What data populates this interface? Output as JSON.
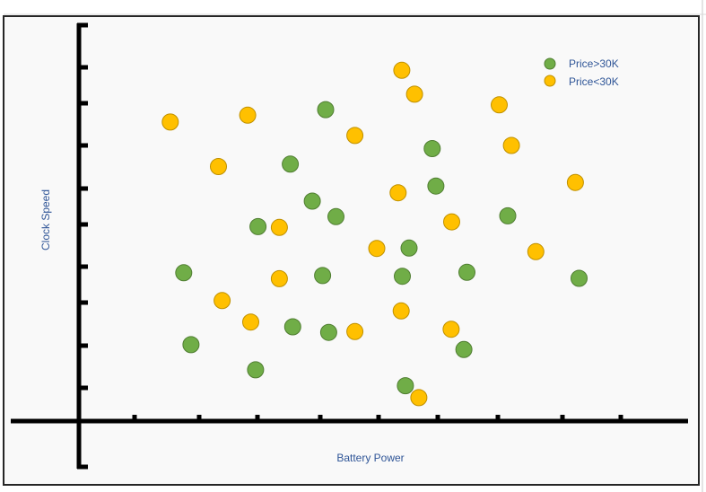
{
  "chart_data": {
    "type": "scatter",
    "xlabel": "Battery Power",
    "ylabel": "Clock Speed",
    "xlim": [
      0,
      100
    ],
    "ylim": [
      0,
      100
    ],
    "grid": false,
    "legend_position": "top-right",
    "series": [
      {
        "name": "Price>30K",
        "color": "#70ad47",
        "points": [
          {
            "x": 40.5,
            "y": 78.3
          },
          {
            "x": 34.7,
            "y": 64.6
          },
          {
            "x": 58.0,
            "y": 68.5
          },
          {
            "x": 38.3,
            "y": 55.3
          },
          {
            "x": 58.6,
            "y": 59.1
          },
          {
            "x": 29.4,
            "y": 48.9
          },
          {
            "x": 42.2,
            "y": 51.4
          },
          {
            "x": 70.4,
            "y": 51.6
          },
          {
            "x": 54.2,
            "y": 43.5
          },
          {
            "x": 17.2,
            "y": 37.3
          },
          {
            "x": 40.0,
            "y": 36.6
          },
          {
            "x": 53.1,
            "y": 36.4
          },
          {
            "x": 63.7,
            "y": 37.4
          },
          {
            "x": 82.1,
            "y": 35.9
          },
          {
            "x": 35.1,
            "y": 23.7
          },
          {
            "x": 41.0,
            "y": 22.3
          },
          {
            "x": 18.4,
            "y": 19.2
          },
          {
            "x": 63.2,
            "y": 18.0
          },
          {
            "x": 29.0,
            "y": 12.9
          },
          {
            "x": 53.6,
            "y": 8.9
          }
        ]
      },
      {
        "name": "Price<30K",
        "color": "#ffc000",
        "points": [
          {
            "x": 53.0,
            "y": 88.2
          },
          {
            "x": 55.1,
            "y": 82.2
          },
          {
            "x": 69.0,
            "y": 79.5
          },
          {
            "x": 27.7,
            "y": 76.9
          },
          {
            "x": 15.0,
            "y": 75.2
          },
          {
            "x": 45.3,
            "y": 71.8
          },
          {
            "x": 71.0,
            "y": 69.3
          },
          {
            "x": 22.9,
            "y": 64.0
          },
          {
            "x": 81.5,
            "y": 60.0
          },
          {
            "x": 52.4,
            "y": 57.4
          },
          {
            "x": 61.2,
            "y": 50.1
          },
          {
            "x": 32.9,
            "y": 48.7
          },
          {
            "x": 48.9,
            "y": 43.4
          },
          {
            "x": 75.0,
            "y": 42.6
          },
          {
            "x": 32.9,
            "y": 35.8
          },
          {
            "x": 23.5,
            "y": 30.3
          },
          {
            "x": 52.9,
            "y": 27.7
          },
          {
            "x": 28.2,
            "y": 24.9
          },
          {
            "x": 45.3,
            "y": 22.5
          },
          {
            "x": 61.1,
            "y": 23.1
          },
          {
            "x": 55.8,
            "y": 5.9
          }
        ]
      }
    ]
  }
}
